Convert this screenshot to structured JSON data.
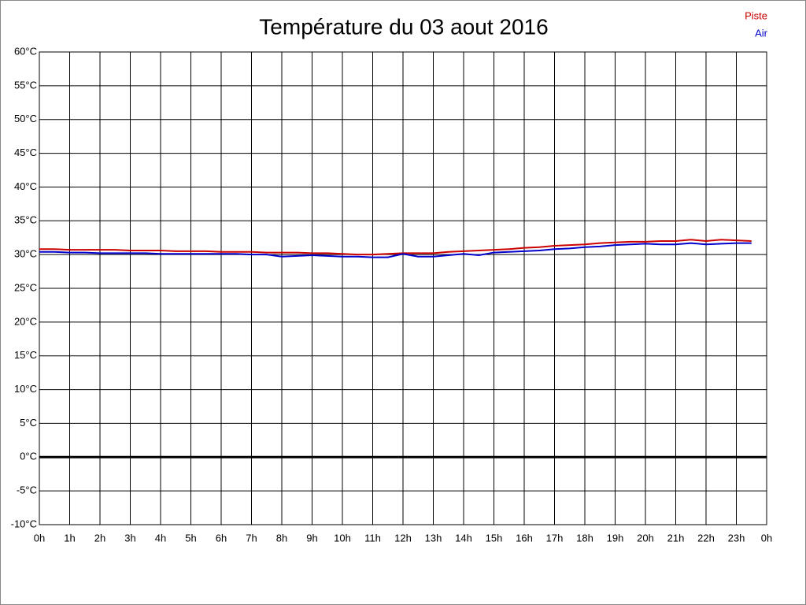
{
  "chart_data": {
    "type": "line",
    "title": "Température du 03 aout 2016",
    "x": [
      0,
      0.5,
      1,
      1.5,
      2,
      2.5,
      3,
      3.5,
      4,
      4.5,
      5,
      5.5,
      6,
      6.5,
      7,
      7.5,
      8,
      8.5,
      9,
      9.5,
      10,
      10.5,
      11,
      11.5,
      12,
      12.5,
      13,
      13.5,
      14,
      14.5,
      15,
      15.5,
      16,
      16.5,
      17,
      17.5,
      18,
      18.5,
      19,
      19.5,
      20,
      20.5,
      21,
      21.5,
      22,
      22.5,
      23,
      23.5
    ],
    "series": [
      {
        "name": "Piste",
        "color": "#cc0000",
        "values": [
          30.8,
          30.8,
          30.7,
          30.7,
          30.7,
          30.7,
          30.6,
          30.6,
          30.6,
          30.5,
          30.5,
          30.5,
          30.4,
          30.4,
          30.4,
          30.3,
          30.3,
          30.3,
          30.2,
          30.2,
          30.1,
          30.0,
          30.0,
          30.1,
          30.2,
          30.2,
          30.2,
          30.4,
          30.5,
          30.6,
          30.7,
          30.8,
          31.0,
          31.1,
          31.3,
          31.4,
          31.5,
          31.7,
          31.8,
          31.9,
          31.9,
          32.0,
          32.0,
          32.2,
          32.0,
          32.2,
          32.1,
          32.0
        ]
      },
      {
        "name": "Air",
        "color": "#0000cc",
        "values": [
          30.4,
          30.4,
          30.3,
          30.3,
          30.2,
          30.2,
          30.2,
          30.2,
          30.1,
          30.1,
          30.1,
          30.1,
          30.1,
          30.1,
          30.0,
          30.0,
          29.7,
          29.8,
          29.9,
          29.8,
          29.7,
          29.7,
          29.6,
          29.6,
          30.1,
          29.7,
          29.7,
          29.9,
          30.1,
          29.9,
          30.3,
          30.4,
          30.5,
          30.6,
          30.8,
          30.9,
          31.1,
          31.2,
          31.4,
          31.5,
          31.6,
          31.5,
          31.5,
          31.7,
          31.5,
          31.6,
          31.7,
          31.7
        ]
      }
    ],
    "xlim": [
      0,
      24
    ],
    "xticks": [
      {
        "value": 0,
        "label": "0h"
      },
      {
        "value": 1,
        "label": "1h"
      },
      {
        "value": 2,
        "label": "2h"
      },
      {
        "value": 3,
        "label": "3h"
      },
      {
        "value": 4,
        "label": "4h"
      },
      {
        "value": 5,
        "label": "5h"
      },
      {
        "value": 6,
        "label": "6h"
      },
      {
        "value": 7,
        "label": "7h"
      },
      {
        "value": 8,
        "label": "8h"
      },
      {
        "value": 9,
        "label": "9h"
      },
      {
        "value": 10,
        "label": "10h"
      },
      {
        "value": 11,
        "label": "11h"
      },
      {
        "value": 12,
        "label": "12h"
      },
      {
        "value": 13,
        "label": "13h"
      },
      {
        "value": 14,
        "label": "14h"
      },
      {
        "value": 15,
        "label": "15h"
      },
      {
        "value": 16,
        "label": "16h"
      },
      {
        "value": 17,
        "label": "17h"
      },
      {
        "value": 18,
        "label": "18h"
      },
      {
        "value": 19,
        "label": "19h"
      },
      {
        "value": 20,
        "label": "20h"
      },
      {
        "value": 21,
        "label": "21h"
      },
      {
        "value": 22,
        "label": "22h"
      },
      {
        "value": 23,
        "label": "23h"
      },
      {
        "value": 24,
        "label": "0h"
      }
    ],
    "ylim": [
      -10,
      60
    ],
    "yticks": [
      {
        "value": -10,
        "label": "-10°C"
      },
      {
        "value": -5,
        "label": "-5°C"
      },
      {
        "value": 0,
        "label": "0°C"
      },
      {
        "value": 5,
        "label": "5°C"
      },
      {
        "value": 10,
        "label": "10°C"
      },
      {
        "value": 15,
        "label": "15°C"
      },
      {
        "value": 20,
        "label": "20°C"
      },
      {
        "value": 25,
        "label": "25°C"
      },
      {
        "value": 30,
        "label": "30°C"
      },
      {
        "value": 35,
        "label": "35°C"
      },
      {
        "value": 40,
        "label": "40°C"
      },
      {
        "value": 45,
        "label": "45°C"
      },
      {
        "value": 50,
        "label": "50°C"
      },
      {
        "value": 55,
        "label": "55°C"
      },
      {
        "value": 60,
        "label": "60°C"
      }
    ],
    "grid": true,
    "zero_line": true,
    "legend": "top-right"
  }
}
